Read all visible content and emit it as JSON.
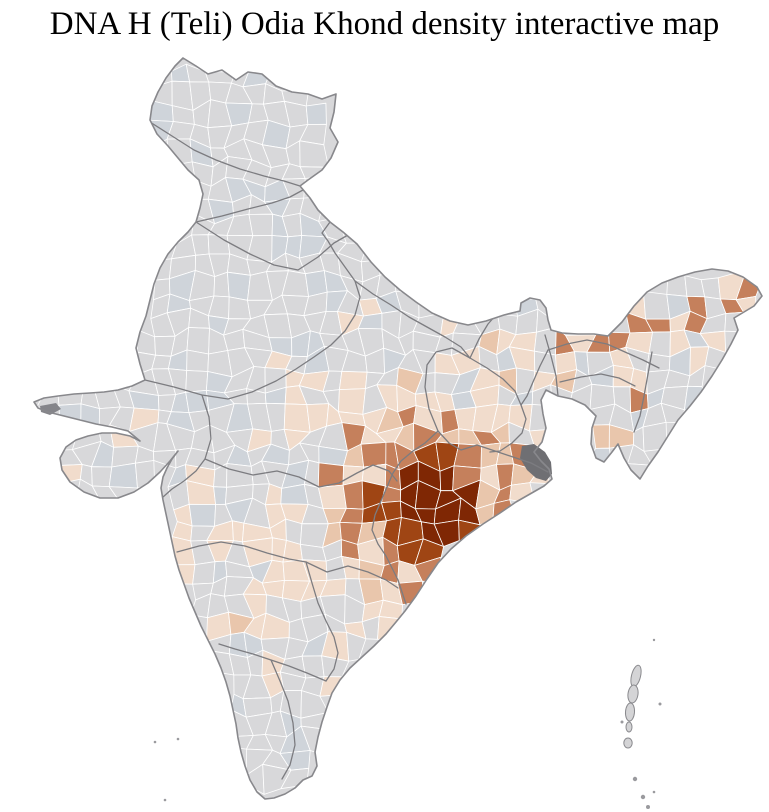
{
  "title": "DNA H (Teli) Odia Khond density interactive map",
  "map": {
    "type": "choropleth",
    "palette": {
      "sea": "#ffffff",
      "land_gray": "#d8d8da",
      "land_gray_alt": "#cfd4da",
      "density_scale": [
        "#f1dccc",
        "#e9c6ac",
        "#c5805c",
        "#9f4514",
        "#7f2704"
      ],
      "district_border": "#ffffff",
      "state_border": "#7c7c80",
      "coast_border": "#88888c",
      "delta_dark": "#6f6f73",
      "title_color": "#000000"
    }
  }
}
